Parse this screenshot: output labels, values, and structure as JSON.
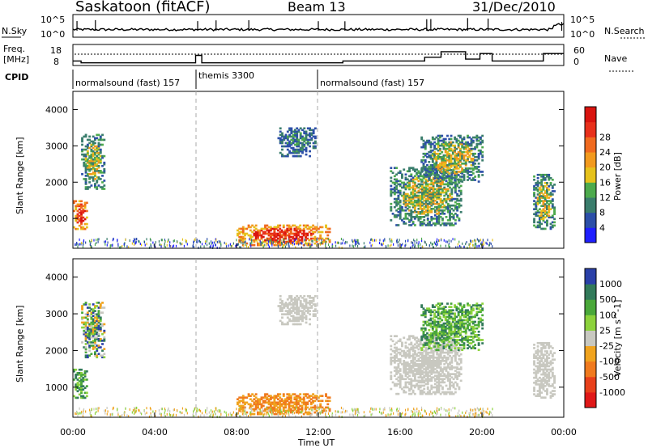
{
  "header": {
    "station": "Saskatoon (fitACF)",
    "beam": "Beam 13",
    "date": "31/Dec/2010"
  },
  "top_panel": {
    "left_label": "N.Sky",
    "right_label": "N.Search",
    "left_ticks": [
      "10^5",
      "10^0"
    ],
    "right_ticks": [
      "10^5",
      "10^0"
    ]
  },
  "freq_panel": {
    "left_label_line1": "Freq.",
    "left_label_line2": "[MHz]",
    "right_label": "Nave",
    "left_ticks": [
      "18",
      "8"
    ],
    "right_ticks": [
      "60",
      "0"
    ]
  },
  "cpid": {
    "label": "CPID",
    "modes": [
      {
        "name": "normalsound (fast) 157",
        "start_hour": 0
      },
      {
        "name": "themis 3300",
        "start_hour": 6
      },
      {
        "name": "normalsound (fast) 157",
        "start_hour": 12
      }
    ]
  },
  "time_axis": {
    "label": "Time UT",
    "ticks": [
      "00:00",
      "04:00",
      "08:00",
      "12:00",
      "16:00",
      "20:00",
      "00:00"
    ]
  },
  "power_panel": {
    "ylabel": "Slant Range [km]",
    "yticks": [
      "1000",
      "2000",
      "3000",
      "4000"
    ],
    "colorbar_label": "Power [dB]",
    "colorbar_ticks": [
      "4",
      "8",
      "12",
      "16",
      "20",
      "24",
      "28"
    ],
    "colors": [
      "#1f1fff",
      "#2c4fa8",
      "#3a7d6c",
      "#4daa4d",
      "#e6c21c",
      "#f29a1e",
      "#f06a1f",
      "#e8301b",
      "#d9140f"
    ]
  },
  "velocity_panel": {
    "ylabel": "Slant Range [km]",
    "yticks": [
      "1000",
      "2000",
      "3000",
      "4000"
    ],
    "colorbar_label": "Velocity [m s^-1]",
    "colorbar_ticks": [
      "1000",
      "500",
      "100",
      "25",
      "-25",
      "-100",
      "-500",
      "-1000"
    ],
    "colors": [
      "#2a40a8",
      "#327a5a",
      "#4aa83a",
      "#8cd23c",
      "#c8c8c0",
      "#f0a31e",
      "#f07a1e",
      "#e8401b",
      "#e01818"
    ]
  },
  "chart_data": {
    "type": "heatmap",
    "x_range_hours": [
      0,
      24
    ],
    "y_range_km": [
      180,
      4500
    ],
    "dashed_lines_hours": [
      6,
      12
    ],
    "nsky_level": "near 10^1 throughout, with spikes toward 10^5",
    "frequency_MHz": [
      {
        "start": 0.0,
        "end": 0.4,
        "value": 10
      },
      {
        "start": 0.4,
        "end": 6.0,
        "value": 9
      },
      {
        "start": 6.0,
        "end": 6.3,
        "value": 13
      },
      {
        "start": 6.3,
        "end": 13.2,
        "value": 9
      },
      {
        "start": 13.2,
        "end": 17.2,
        "value": 10
      },
      {
        "start": 17.2,
        "end": 18.0,
        "value": 12
      },
      {
        "start": 18.0,
        "end": 19.2,
        "value": 15
      },
      {
        "start": 19.2,
        "end": 19.9,
        "value": 11
      },
      {
        "start": 19.9,
        "end": 20.5,
        "value": 14
      },
      {
        "start": 20.5,
        "end": 23.0,
        "value": 10
      },
      {
        "start": 23.0,
        "end": 24.0,
        "value": 14
      }
    ],
    "scatter_regions": [
      {
        "name": "early echoes (midnight)",
        "t0": 0.0,
        "t1": 0.7,
        "r0": 650,
        "r1": 1500,
        "power": "high",
        "velocity": "positive"
      },
      {
        "name": "far echoes",
        "t0": 0.4,
        "t1": 1.5,
        "r0": 1800,
        "r1": 3300,
        "power": "medium",
        "velocity": "mixed"
      },
      {
        "name": "ground scatter",
        "t0": 8.0,
        "t1": 12.5,
        "r0": 250,
        "r1": 800,
        "power": "high",
        "velocity": "negative (~ -100)"
      },
      {
        "name": "far arc",
        "t0": 10.0,
        "t1": 11.8,
        "r0": 2700,
        "r1": 3500,
        "power": "low",
        "velocity": "near 0"
      },
      {
        "name": "afternoon band",
        "t0": 15.5,
        "t1": 19.0,
        "r0": 800,
        "r1": 2400,
        "power": "medium",
        "velocity": "near 0"
      },
      {
        "name": "afternoon far",
        "t0": 17.0,
        "t1": 20.0,
        "r0": 2000,
        "r1": 3300,
        "power": "medium",
        "velocity": "positive"
      },
      {
        "name": "evening",
        "t0": 22.5,
        "t1": 23.5,
        "r0": 700,
        "r1": 2200,
        "power": "medium",
        "velocity": "near 0"
      }
    ]
  }
}
